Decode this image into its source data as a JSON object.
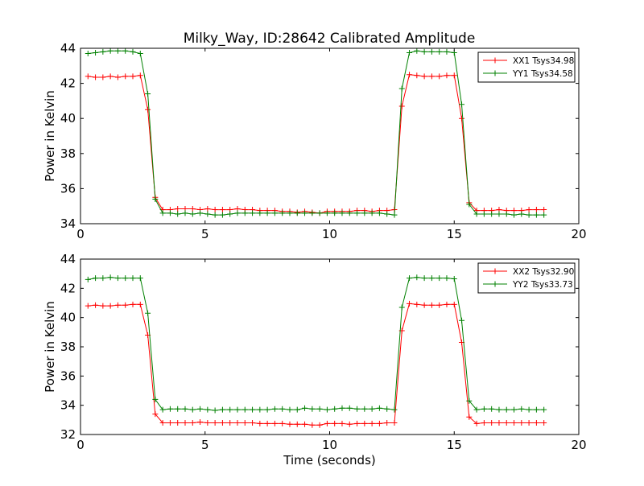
{
  "figure": {
    "title": "Milky_Way, ID:28642 Calibrated Amplitude"
  },
  "chart_data": [
    {
      "type": "line",
      "title": "Milky_Way, ID:28642 Calibrated Amplitude",
      "xlabel": "",
      "ylabel": "Power in Kelvin",
      "xlim": [
        0,
        20
      ],
      "ylim": [
        34,
        44
      ],
      "xticks": [
        0,
        5,
        10,
        15,
        20
      ],
      "yticks": [
        34,
        36,
        38,
        40,
        42,
        44
      ],
      "xticklabels": [
        "0",
        "5",
        "10",
        "15",
        "20"
      ],
      "yticklabels": [
        "34",
        "36",
        "38",
        "40",
        "42",
        "44"
      ],
      "grid": false,
      "legend_position": "top-right",
      "x": [
        0.3,
        0.6,
        0.9,
        1.2,
        1.5,
        1.8,
        2.1,
        2.4,
        2.7,
        3.0,
        3.3,
        3.6,
        3.9,
        4.2,
        4.5,
        4.8,
        5.1,
        5.4,
        5.7,
        6.0,
        6.3,
        6.6,
        6.9,
        7.2,
        7.5,
        7.8,
        8.1,
        8.4,
        8.7,
        9.0,
        9.3,
        9.6,
        9.9,
        10.2,
        10.5,
        10.8,
        11.1,
        11.4,
        11.7,
        12.0,
        12.3,
        12.6,
        12.9,
        13.2,
        13.5,
        13.8,
        14.1,
        14.4,
        14.7,
        15.0,
        15.3,
        15.6,
        15.9,
        16.2,
        16.5,
        16.8,
        17.1,
        17.4,
        17.7,
        18.0,
        18.3,
        18.6
      ],
      "series": [
        {
          "name": "XX1 Tsys34.98",
          "color": "#ff0000",
          "values": [
            42.4,
            42.35,
            42.35,
            42.4,
            42.35,
            42.4,
            42.4,
            42.45,
            40.5,
            35.5,
            34.8,
            34.8,
            34.85,
            34.85,
            34.85,
            34.8,
            34.85,
            34.8,
            34.8,
            34.8,
            34.85,
            34.8,
            34.8,
            34.75,
            34.75,
            34.75,
            34.7,
            34.7,
            34.65,
            34.7,
            34.65,
            34.6,
            34.7,
            34.7,
            34.7,
            34.7,
            34.75,
            34.75,
            34.7,
            34.75,
            34.75,
            34.8,
            40.7,
            42.5,
            42.45,
            42.4,
            42.4,
            42.4,
            42.45,
            42.45,
            40.0,
            35.2,
            34.75,
            34.75,
            34.75,
            34.8,
            34.75,
            34.75,
            34.75,
            34.8,
            34.8,
            34.8
          ]
        },
        {
          "name": "YY1 Tsys34.58",
          "color": "#008000",
          "values": [
            43.7,
            43.75,
            43.8,
            43.85,
            43.85,
            43.85,
            43.8,
            43.7,
            41.4,
            35.4,
            34.6,
            34.6,
            34.55,
            34.6,
            34.55,
            34.6,
            34.55,
            34.5,
            34.5,
            34.55,
            34.6,
            34.6,
            34.6,
            34.6,
            34.6,
            34.6,
            34.6,
            34.6,
            34.6,
            34.6,
            34.6,
            34.6,
            34.6,
            34.6,
            34.6,
            34.6,
            34.6,
            34.6,
            34.6,
            34.6,
            34.55,
            34.5,
            41.7,
            43.75,
            43.85,
            43.8,
            43.8,
            43.8,
            43.8,
            43.75,
            40.8,
            35.1,
            34.55,
            34.55,
            34.55,
            34.55,
            34.55,
            34.5,
            34.55,
            34.5,
            34.5,
            34.5
          ]
        }
      ]
    },
    {
      "type": "line",
      "title": "",
      "xlabel": "Time (seconds)",
      "ylabel": "Power in Kelvin",
      "xlim": [
        0,
        20
      ],
      "ylim": [
        32,
        44
      ],
      "xticks": [
        0,
        5,
        10,
        15,
        20
      ],
      "yticks": [
        32,
        34,
        36,
        38,
        40,
        42,
        44
      ],
      "xticklabels": [
        "0",
        "5",
        "10",
        "15",
        "20"
      ],
      "yticklabels": [
        "32",
        "34",
        "36",
        "38",
        "40",
        "42",
        "44"
      ],
      "grid": false,
      "legend_position": "top-right",
      "x": [
        0.3,
        0.6,
        0.9,
        1.2,
        1.5,
        1.8,
        2.1,
        2.4,
        2.7,
        3.0,
        3.3,
        3.6,
        3.9,
        4.2,
        4.5,
        4.8,
        5.1,
        5.4,
        5.7,
        6.0,
        6.3,
        6.6,
        6.9,
        7.2,
        7.5,
        7.8,
        8.1,
        8.4,
        8.7,
        9.0,
        9.3,
        9.6,
        9.9,
        10.2,
        10.5,
        10.8,
        11.1,
        11.4,
        11.7,
        12.0,
        12.3,
        12.6,
        12.9,
        13.2,
        13.5,
        13.8,
        14.1,
        14.4,
        14.7,
        15.0,
        15.3,
        15.6,
        15.9,
        16.2,
        16.5,
        16.8,
        17.1,
        17.4,
        17.7,
        18.0,
        18.3,
        18.6
      ],
      "series": [
        {
          "name": "XX2 Tsys32.90",
          "color": "#ff0000",
          "values": [
            40.8,
            40.85,
            40.8,
            40.8,
            40.85,
            40.85,
            40.9,
            40.9,
            38.8,
            33.4,
            32.8,
            32.8,
            32.8,
            32.8,
            32.8,
            32.85,
            32.8,
            32.8,
            32.8,
            32.8,
            32.8,
            32.8,
            32.8,
            32.75,
            32.75,
            32.75,
            32.75,
            32.7,
            32.7,
            32.7,
            32.65,
            32.65,
            32.75,
            32.75,
            32.75,
            32.7,
            32.75,
            32.75,
            32.75,
            32.75,
            32.8,
            32.8,
            39.1,
            40.95,
            40.9,
            40.85,
            40.85,
            40.85,
            40.9,
            40.9,
            38.3,
            33.2,
            32.75,
            32.8,
            32.8,
            32.8,
            32.8,
            32.8,
            32.8,
            32.8,
            32.8,
            32.8
          ]
        },
        {
          "name": "YY2 Tsys33.73",
          "color": "#008000",
          "values": [
            42.6,
            42.7,
            42.7,
            42.75,
            42.7,
            42.7,
            42.7,
            42.7,
            40.3,
            34.4,
            33.7,
            33.75,
            33.75,
            33.75,
            33.7,
            33.75,
            33.7,
            33.65,
            33.7,
            33.7,
            33.7,
            33.7,
            33.7,
            33.7,
            33.7,
            33.75,
            33.75,
            33.7,
            33.7,
            33.8,
            33.75,
            33.75,
            33.7,
            33.75,
            33.8,
            33.8,
            33.75,
            33.75,
            33.75,
            33.8,
            33.75,
            33.7,
            40.7,
            42.7,
            42.75,
            42.7,
            42.7,
            42.7,
            42.7,
            42.65,
            39.8,
            34.3,
            33.7,
            33.75,
            33.75,
            33.7,
            33.7,
            33.7,
            33.75,
            33.7,
            33.7,
            33.7
          ]
        }
      ]
    }
  ]
}
